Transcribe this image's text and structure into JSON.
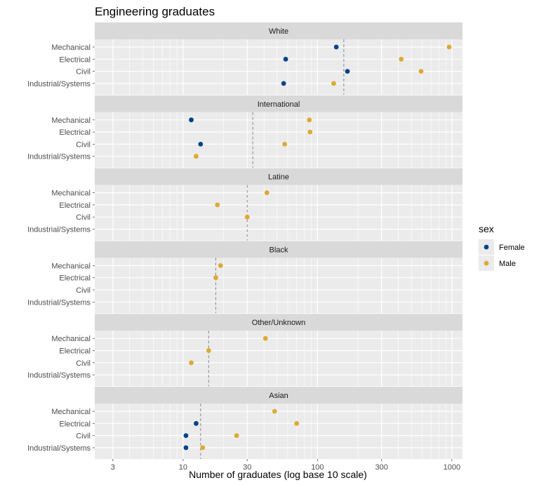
{
  "chart_data": {
    "type": "scatter",
    "title": "Engineering graduates",
    "xlabel": "Number of graduates (log base 10 scale)",
    "ylabel": "",
    "x_scale": "log10",
    "xlim": [
      2.2,
      1200
    ],
    "x_ticks": [
      3,
      10,
      30,
      100,
      300,
      1000
    ],
    "x_tick_labels": [
      "3",
      "10",
      "30",
      "100",
      "300",
      "1000"
    ],
    "categories": [
      "Mechanical",
      "Electrical",
      "Civil",
      "Industrial/Systems"
    ],
    "legend": {
      "title": "sex",
      "placement": "right",
      "entries": [
        {
          "name": "Female",
          "color": "#004488"
        },
        {
          "name": "Male",
          "color": "#DDAA33"
        }
      ]
    },
    "reference_line": {
      "style": "dashed",
      "color": "#888888"
    },
    "panels": [
      {
        "name": "White",
        "reference": 157,
        "points": [
          {
            "category": "Mechanical",
            "sex": "Female",
            "x": 138
          },
          {
            "category": "Mechanical",
            "sex": "Male",
            "x": 955
          },
          {
            "category": "Electrical",
            "sex": "Female",
            "x": 58
          },
          {
            "category": "Electrical",
            "sex": "Male",
            "x": 420
          },
          {
            "category": "Civil",
            "sex": "Female",
            "x": 167
          },
          {
            "category": "Civil",
            "sex": "Male",
            "x": 590
          },
          {
            "category": "Industrial/Systems",
            "sex": "Female",
            "x": 56
          },
          {
            "category": "Industrial/Systems",
            "sex": "Male",
            "x": 132
          }
        ]
      },
      {
        "name": "International",
        "reference": 33,
        "points": [
          {
            "category": "Mechanical",
            "sex": "Female",
            "x": 11.5
          },
          {
            "category": "Mechanical",
            "sex": "Male",
            "x": 87
          },
          {
            "category": "Electrical",
            "sex": "Male",
            "x": 88
          },
          {
            "category": "Civil",
            "sex": "Female",
            "x": 13.5
          },
          {
            "category": "Civil",
            "sex": "Male",
            "x": 57
          },
          {
            "category": "Industrial/Systems",
            "sex": "Male",
            "x": 12.5
          }
        ]
      },
      {
        "name": "Latine",
        "reference": 30,
        "points": [
          {
            "category": "Mechanical",
            "sex": "Male",
            "x": 42
          },
          {
            "category": "Electrical",
            "sex": "Male",
            "x": 18
          },
          {
            "category": "Civil",
            "sex": "Male",
            "x": 30
          }
        ]
      },
      {
        "name": "Black",
        "reference": 17.5,
        "points": [
          {
            "category": "Mechanical",
            "sex": "Male",
            "x": 19
          },
          {
            "category": "Electrical",
            "sex": "Male",
            "x": 17.5
          }
        ]
      },
      {
        "name": "Other/Unknown",
        "reference": 15.5,
        "points": [
          {
            "category": "Mechanical",
            "sex": "Male",
            "x": 41
          },
          {
            "category": "Electrical",
            "sex": "Male",
            "x": 15.5
          },
          {
            "category": "Civil",
            "sex": "Male",
            "x": 11.5
          }
        ]
      },
      {
        "name": "Asian",
        "reference": 13.5,
        "points": [
          {
            "category": "Mechanical",
            "sex": "Male",
            "x": 48
          },
          {
            "category": "Electrical",
            "sex": "Female",
            "x": 12.5
          },
          {
            "category": "Electrical",
            "sex": "Male",
            "x": 70
          },
          {
            "category": "Civil",
            "sex": "Female",
            "x": 10.5
          },
          {
            "category": "Civil",
            "sex": "Male",
            "x": 25
          },
          {
            "category": "Industrial/Systems",
            "sex": "Female",
            "x": 10.5
          },
          {
            "category": "Industrial/Systems",
            "sex": "Male",
            "x": 14
          }
        ]
      }
    ]
  }
}
